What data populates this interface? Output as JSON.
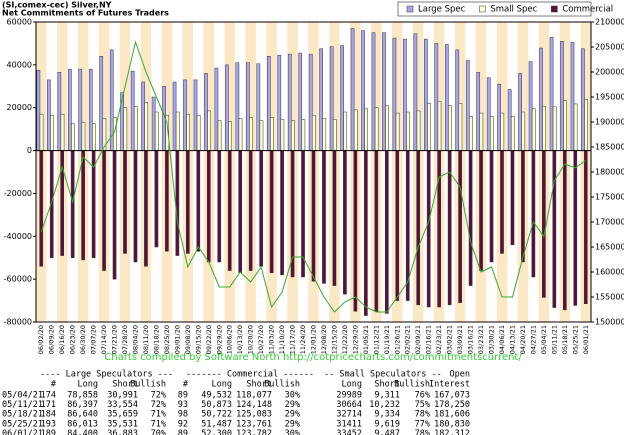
{
  "chart_data": {
    "type": "bar",
    "title": "(SI,comex-cec) Silver,NY",
    "subtitle": "Net Commitments of Futures Traders",
    "annotation": "Charts compiled by Software North  http://cotpricecharts.com/commitmentscurrent/",
    "categories": [
      "06/02/20",
      "06/09/20",
      "06/16/20",
      "06/23/20",
      "06/30/20",
      "07/07/20",
      "07/14/20",
      "07/21/20",
      "07/28/20",
      "08/04/20",
      "08/11/20",
      "08/18/20",
      "08/25/20",
      "09/01/20",
      "09/08/20",
      "09/15/20",
      "09/22/20",
      "09/29/20",
      "10/06/20",
      "10/13/20",
      "10/20/20",
      "10/27/20",
      "11/03/20",
      "11/10/20",
      "11/17/20",
      "11/24/20",
      "12/01/20",
      "12/08/20",
      "12/15/20",
      "12/22/20",
      "12/29/20",
      "01/05/21",
      "01/12/21",
      "01/19/21",
      "01/26/21",
      "02/02/21",
      "02/09/21",
      "02/16/21",
      "02/23/21",
      "03/02/21",
      "03/09/21",
      "03/16/21",
      "03/23/21",
      "03/30/21",
      "04/06/21",
      "04/13/21",
      "04/20/21",
      "04/27/21",
      "05/04/21",
      "05/11/21",
      "05/18/21",
      "05/25/21",
      "06/01/21"
    ],
    "series": [
      {
        "name": "Large Spec",
        "color": "#a6a6f0",
        "values": [
          37500,
          33000,
          36500,
          38000,
          38000,
          38000,
          44000,
          47000,
          27000,
          37000,
          32000,
          25000,
          30000,
          32000,
          33000,
          33000,
          36000,
          38500,
          40000,
          41000,
          41000,
          40500,
          44000,
          44500,
          45000,
          45500,
          45000,
          47500,
          48500,
          49000,
          57000,
          56000,
          55000,
          55000,
          52500,
          52000,
          54500,
          52000,
          50000,
          49500,
          47000,
          42000,
          36500,
          34000,
          31000,
          28500,
          36000,
          41500,
          47867,
          52843,
          50981,
          50482,
          47517
        ]
      },
      {
        "name": "Small Spec",
        "color": "#ffffcc",
        "values": [
          17000,
          16500,
          17000,
          12500,
          13000,
          12500,
          15000,
          15500,
          20000,
          20500,
          22500,
          18000,
          16500,
          18000,
          17000,
          16500,
          18500,
          14000,
          13500,
          15000,
          15500,
          14000,
          15500,
          14500,
          14000,
          14500,
          16500,
          15000,
          14500,
          18000,
          19000,
          19500,
          20000,
          21000,
          17500,
          18000,
          18500,
          22000,
          23000,
          21000,
          22000,
          16000,
          17500,
          16000,
          17500,
          16000,
          18000,
          19500,
          20678,
          20432,
          23380,
          21792,
          23965
        ]
      },
      {
        "name": "Commercial",
        "color": "#5c0f3a",
        "values": [
          -54000,
          -50000,
          -49000,
          -50000,
          -51000,
          -50000,
          -56000,
          -60000,
          -48000,
          -52000,
          -54000,
          -45000,
          -47000,
          -49000,
          -48000,
          -47000,
          -52000,
          -52000,
          -56000,
          -57000,
          -56000,
          -54000,
          -57000,
          -58000,
          -59000,
          -59000,
          -61000,
          -62000,
          -63000,
          -67000,
          -75000,
          -77000,
          -75000,
          -76000,
          -70000,
          -70000,
          -72000,
          -73000,
          -73000,
          -72000,
          -71000,
          -63000,
          -56000,
          -52000,
          -48000,
          -44000,
          -52000,
          -59000,
          -68545,
          -73275,
          -74361,
          -72274,
          -71482
        ]
      },
      {
        "name": "Open Interest",
        "color": "#33aa33",
        "type": "line",
        "axis": "y2",
        "values": [
          168000,
          174000,
          181000,
          174000,
          183000,
          181000,
          185000,
          188000,
          197000,
          206000,
          200000,
          195000,
          190000,
          170000,
          161000,
          165000,
          162000,
          157000,
          157000,
          160000,
          158000,
          161000,
          153000,
          156000,
          163000,
          163000,
          159000,
          155000,
          152000,
          154000,
          155000,
          153000,
          152000,
          152000,
          155000,
          158000,
          165000,
          170000,
          179000,
          180000,
          177000,
          166000,
          160000,
          161000,
          155000,
          155000,
          163000,
          170000,
          167073,
          178250,
          181606,
          180830,
          182312
        ]
      }
    ],
    "ylim": [
      -80000,
      60000
    ],
    "yticks": [
      -80000,
      -60000,
      -40000,
      -20000,
      0,
      20000,
      40000,
      60000
    ],
    "y2lim": [
      150000,
      210000
    ],
    "y2ticks": [
      150000,
      155000,
      160000,
      165000,
      170000,
      175000,
      180000,
      185000,
      190000,
      195000,
      200000,
      205000,
      210000
    ],
    "legend": "top-right"
  },
  "table": {
    "header": [
      "---- Large Speculators ---",
      "------- Commercial ------",
      "-- Small Speculators --",
      "Open"
    ],
    "columns": [
      "#",
      "Long",
      "Short",
      "Bullish",
      "#",
      "Long",
      "Short",
      "Bullish",
      "Long",
      "Short",
      "Bullish",
      "Interest"
    ],
    "rows": [
      [
        "05/04/21",
        "174",
        "78,858",
        "30,991",
        "72%",
        "89",
        "49,532",
        "118,077",
        "30%",
        "29989",
        "9,311",
        "76%",
        "167,073"
      ],
      [
        "05/11/21",
        "171",
        "86,397",
        "33,554",
        "72%",
        "93",
        "50,873",
        "124,148",
        "29%",
        "30664",
        "10,232",
        "75%",
        "178,250"
      ],
      [
        "05/18/21",
        "184",
        "86,640",
        "35,659",
        "71%",
        "98",
        "50,722",
        "125,083",
        "29%",
        "32714",
        "9,334",
        "78%",
        "181,606"
      ],
      [
        "05/25/21",
        "193",
        "86,013",
        "35,531",
        "71%",
        "92",
        "51,487",
        "123,761",
        "29%",
        "31411",
        "9,619",
        "77%",
        "180,830"
      ],
      [
        "06/01/21",
        "189",
        "84,400",
        "36,883",
        "70%",
        "89",
        "52,300",
        "123,782",
        "30%",
        "33452",
        "9,487",
        "78%",
        "182,312"
      ]
    ]
  }
}
